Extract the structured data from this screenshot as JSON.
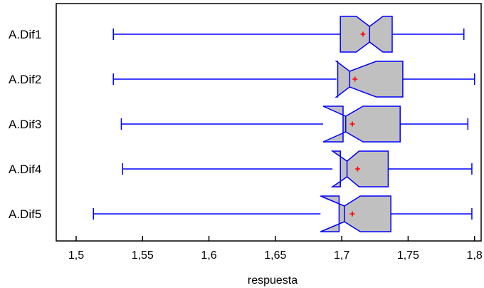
{
  "chart_data": {
    "type": "boxplot",
    "orientation": "horizontal",
    "notched": true,
    "xlabel": "respuesta",
    "xlim": [
      1.485,
      1.805
    ],
    "xticks": [
      1.5,
      1.55,
      1.6,
      1.65,
      1.7,
      1.75,
      1.8
    ],
    "xtick_labels": [
      "1,5",
      "1,55",
      "1,6",
      "1,65",
      "1,7",
      "1,75",
      "1,8"
    ],
    "categories": [
      "A.Dif1",
      "A.Dif2",
      "A.Dif3",
      "A.Dif4",
      "A.Dif5"
    ],
    "series": [
      {
        "category": "A.Dif1",
        "min": 1.528,
        "q1": 1.699,
        "median": 1.721,
        "q3": 1.738,
        "max": 1.792,
        "mean": 1.716,
        "notch_low": 1.711,
        "notch_high": 1.731
      },
      {
        "category": "A.Dif2",
        "min": 1.528,
        "q1": 1.697,
        "median": 1.706,
        "q3": 1.746,
        "max": 1.8,
        "mean": 1.71,
        "notch_low": 1.696,
        "notch_high": 1.726
      },
      {
        "category": "A.Dif3",
        "min": 1.534,
        "q1": 1.701,
        "median": 1.703,
        "q3": 1.744,
        "max": 1.795,
        "mean": 1.708,
        "notch_low": 1.686,
        "notch_high": 1.716
      },
      {
        "category": "A.Dif4",
        "min": 1.535,
        "q1": 1.699,
        "median": 1.704,
        "q3": 1.735,
        "max": 1.798,
        "mean": 1.712,
        "notch_low": 1.693,
        "notch_high": 1.713
      },
      {
        "category": "A.Dif5",
        "min": 1.513,
        "q1": 1.698,
        "median": 1.702,
        "q3": 1.737,
        "max": 1.798,
        "mean": 1.708,
        "notch_low": 1.684,
        "notch_high": 1.714
      }
    ],
    "colors": {
      "box_fill": "#c0c0c0",
      "box_stroke": "#0000ff",
      "whisker": "#0000ff",
      "mean_marker": "#ff0000",
      "frame": "#000000"
    }
  }
}
